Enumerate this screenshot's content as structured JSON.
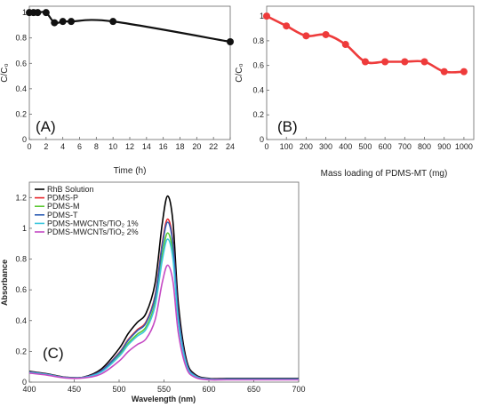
{
  "chart_data": [
    {
      "panel": "(A)",
      "type": "line",
      "xlabel": "Time (h)",
      "ylabel": "C/C₀",
      "xlim": [
        0,
        24
      ],
      "ylim": [
        0,
        1.05
      ],
      "xticks": [
        "0",
        "2",
        "4",
        "6",
        "8",
        "10",
        "12",
        "14",
        "16",
        "18",
        "20",
        "22",
        "24"
      ],
      "yticks": [
        "0",
        "0.2",
        "0.4",
        "0.6",
        "0.8",
        "1"
      ],
      "x": [
        0,
        0.5,
        1,
        2,
        3,
        4,
        5,
        10,
        24
      ],
      "y": [
        1.0,
        1.0,
        1.0,
        1.0,
        0.92,
        0.93,
        0.93,
        0.93,
        0.77
      ],
      "color": "#111111"
    },
    {
      "panel": "(B)",
      "type": "line",
      "xlabel": "Mass loading of PDMS-MT (mg)",
      "ylabel": "C/C₀",
      "xlim": [
        0,
        1050
      ],
      "ylim": [
        0,
        1.08
      ],
      "xticks": [
        "0",
        "100",
        "200",
        "300",
        "400",
        "500",
        "600",
        "700",
        "800",
        "900",
        "1000"
      ],
      "yticks": [
        "0",
        "0.2",
        "0.4",
        "0.6",
        "0.8",
        "1"
      ],
      "x": [
        0,
        100,
        200,
        300,
        400,
        500,
        600,
        700,
        800,
        900,
        1000
      ],
      "y": [
        1.0,
        0.92,
        0.84,
        0.85,
        0.77,
        0.63,
        0.63,
        0.63,
        0.63,
        0.55,
        0.55
      ],
      "color": "#ee3b3b"
    },
    {
      "panel": "(C)",
      "type": "line",
      "xlabel": "Wavelength (nm)",
      "ylabel": "Absorbance",
      "xlim": [
        400,
        700
      ],
      "ylim": [
        0,
        1.3
      ],
      "xticks": [
        "400",
        "450",
        "500",
        "550",
        "600",
        "650",
        "700"
      ],
      "yticks": [
        "0",
        "0.2",
        "0.4",
        "0.6",
        "0.8",
        "1",
        "1.2"
      ],
      "shape": {
        "x": [
          400,
          420,
          440,
          460,
          480,
          500,
          510,
          520,
          530,
          540,
          548,
          554,
          560,
          566,
          575,
          585,
          600,
          620,
          650,
          700
        ],
        "y": [
          0.065,
          0.05,
          0.03,
          0.03,
          0.07,
          0.18,
          0.26,
          0.32,
          0.37,
          0.53,
          0.85,
          1.0,
          0.86,
          0.42,
          0.12,
          0.04,
          0.02,
          0.02,
          0.02,
          0.02
        ]
      },
      "series": [
        {
          "name": "RhB Solution",
          "peak": 1.21,
          "color": "#000000"
        },
        {
          "name": "PDMS-P",
          "peak": 1.06,
          "color": "#e8262b"
        },
        {
          "name": "PDMS-M",
          "peak": 0.97,
          "color": "#5ac831"
        },
        {
          "name": "PDMS-T",
          "peak": 1.04,
          "color": "#2f5fb5"
        },
        {
          "name": "PDMS-MWCNTs/TiO₂ 1%",
          "peak": 0.93,
          "color": "#3ec8de"
        },
        {
          "name": "PDMS-MWCNTs/TiO₂ 2%",
          "peak": 0.76,
          "color": "#c54ac4"
        }
      ]
    }
  ]
}
